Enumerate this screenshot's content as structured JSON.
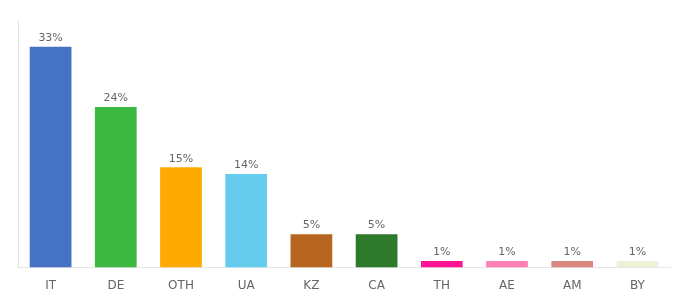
{
  "chart_data": {
    "type": "bar",
    "categories": [
      "IT",
      "DE",
      "OTH",
      "UA",
      "KZ",
      "CA",
      "TH",
      "AE",
      "AM",
      "BY"
    ],
    "values": [
      33,
      24,
      15,
      14,
      5,
      5,
      1,
      1,
      1,
      1
    ],
    "value_labels": [
      "33%",
      "24%",
      "15%",
      "14%",
      "5%",
      "5%",
      "1%",
      "1%",
      "1%",
      "1%"
    ],
    "colors": [
      "#4472c4",
      "#3cb940",
      "#ffaa00",
      "#66ccee",
      "#b5651d",
      "#2d7a2d",
      "#ff1493",
      "#ff80b3",
      "#d98880",
      "#f0f0d8"
    ],
    "ylim": [
      0,
      37
    ],
    "yticks": [],
    "grid": false,
    "data_labels": true,
    "tick_labels": "x"
  }
}
